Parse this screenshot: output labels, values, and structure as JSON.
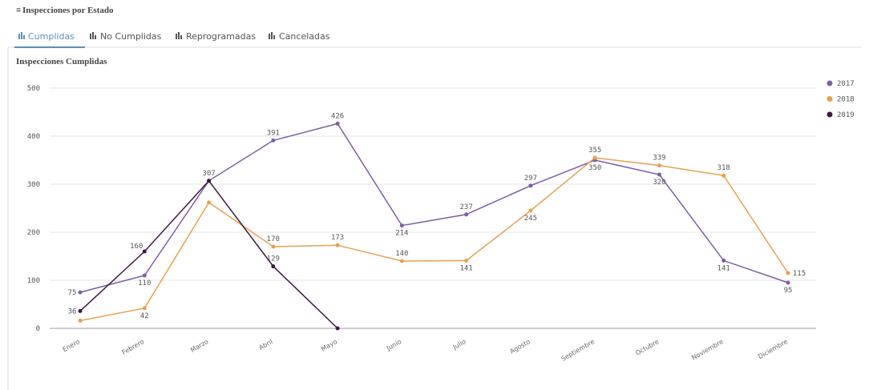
{
  "header": {
    "title": "Inspecciones por Estado"
  },
  "tabs": [
    "Cumplidas",
    "No Cumplidas",
    "Reprogramadas",
    "Canceladas"
  ],
  "chart_data": {
    "type": "line",
    "title": "Inspecciones Cumplidas",
    "categories": [
      "Enero",
      "Febrero",
      "Marzo",
      "Abril",
      "Mayo",
      "Junio",
      "Julio",
      "Agosto",
      "Septiembre",
      "Octubre",
      "Noviembre",
      "Diciembre"
    ],
    "series": [
      {
        "name": "2017",
        "color": "#7b5ea7",
        "values": [
          75,
          110,
          307,
          391,
          426,
          214,
          237,
          297,
          350,
          320,
          141,
          95
        ],
        "value_labels": [
          "75",
          "110",
          "307",
          "391",
          "426",
          "214",
          "237",
          "297",
          "350",
          "320",
          "141",
          "95"
        ]
      },
      {
        "name": "2018",
        "color": "#e8a050",
        "values": [
          16,
          42,
          262,
          170,
          173,
          140,
          141,
          245,
          355,
          339,
          318,
          115
        ],
        "value_labels": [
          null,
          "42",
          null,
          "170",
          "173",
          "140",
          "141",
          "245",
          "355",
          "339",
          "318",
          "115"
        ]
      },
      {
        "name": "2019",
        "color": "#3d1a3f",
        "values": [
          36,
          160,
          307,
          129,
          0,
          null,
          null,
          null,
          null,
          null,
          null,
          null
        ],
        "value_labels": [
          "36",
          "160",
          null,
          "129",
          null,
          null,
          null,
          null,
          null,
          null,
          null,
          null
        ]
      }
    ],
    "ylim": [
      0,
      500
    ],
    "yticks": [
      0,
      100,
      200,
      300,
      400,
      500
    ],
    "grid": true,
    "legend": "right"
  }
}
